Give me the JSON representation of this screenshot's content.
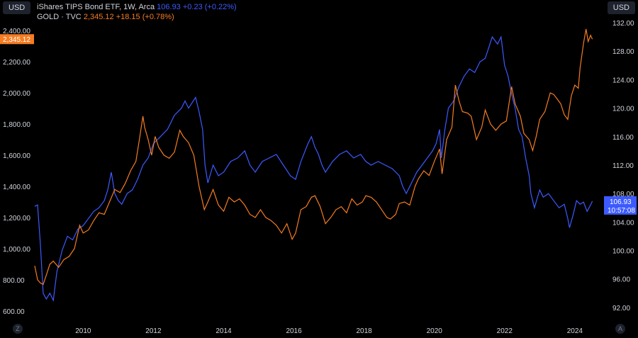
{
  "ui": {
    "left_currency": "USD",
    "right_currency": "USD",
    "zoom_button": "Z",
    "auto_button": "A"
  },
  "legend": {
    "tips": {
      "name": "iShares TIPS Bond ETF, 1W, Arca",
      "price": "106.93",
      "change": "+0.23 (+0.22%)"
    },
    "gold": {
      "name": "GOLD · TVC",
      "price": "2,345.12",
      "change": "+18.15 (+0.78%)"
    }
  },
  "colors": {
    "tips": "#3d5afe",
    "gold": "#f57c22",
    "axis_text": "#d1d4dc"
  },
  "chart_data": {
    "type": "line",
    "x_ticks": [
      "2010",
      "2012",
      "2014",
      "2016",
      "2018",
      "2020",
      "2022",
      "2024"
    ],
    "xlim": [
      2008.6,
      2024.75
    ],
    "left_axis": {
      "ticks": [
        "600.00",
        "800.00",
        "1,000.00",
        "1,200.00",
        "1,400.00",
        "1,600.00",
        "1,800.00",
        "2,000.00",
        "2,200.00",
        "2,400.00"
      ],
      "ylim": [
        540,
        2460
      ],
      "last_value_label": "2,345.12"
    },
    "right_axis": {
      "ticks": [
        "92.00",
        "96.00",
        "100.00",
        "104.00",
        "108.00",
        "112.00",
        "116.00",
        "120.00",
        "124.00",
        "128.00",
        "132.00"
      ],
      "ylim": [
        90.2,
        132.2
      ],
      "last_value_label": "106.93",
      "countdown_label": "10:57:08"
    },
    "series": [
      {
        "name": "iShares TIPS Bond ETF, 1W, Arca",
        "axis": "right",
        "points": [
          [
            2008.62,
            106.2
          ],
          [
            2008.7,
            106.4
          ],
          [
            2008.78,
            101
          ],
          [
            2008.86,
            94
          ],
          [
            2008.95,
            93.2
          ],
          [
            2009.05,
            94
          ],
          [
            2009.15,
            93
          ],
          [
            2009.25,
            97
          ],
          [
            2009.4,
            100
          ],
          [
            2009.55,
            102
          ],
          [
            2009.7,
            101.5
          ],
          [
            2009.85,
            103
          ],
          [
            2010.0,
            103.5
          ],
          [
            2010.15,
            104.5
          ],
          [
            2010.3,
            105.5
          ],
          [
            2010.45,
            106
          ],
          [
            2010.6,
            107
          ],
          [
            2010.7,
            108.5
          ],
          [
            2010.8,
            111
          ],
          [
            2010.9,
            108
          ],
          [
            2011.0,
            107
          ],
          [
            2011.1,
            106.5
          ],
          [
            2011.25,
            108
          ],
          [
            2011.4,
            108.5
          ],
          [
            2011.55,
            110
          ],
          [
            2011.7,
            112
          ],
          [
            2011.85,
            113
          ],
          [
            2012.0,
            115
          ],
          [
            2012.2,
            116
          ],
          [
            2012.4,
            117
          ],
          [
            2012.6,
            119
          ],
          [
            2012.8,
            120
          ],
          [
            2012.9,
            121
          ],
          [
            2013.0,
            120
          ],
          [
            2013.2,
            121.5
          ],
          [
            2013.3,
            119.5
          ],
          [
            2013.4,
            117
          ],
          [
            2013.47,
            112
          ],
          [
            2013.55,
            109.5
          ],
          [
            2013.7,
            112
          ],
          [
            2013.85,
            110.5
          ],
          [
            2014.0,
            111
          ],
          [
            2014.2,
            112.5
          ],
          [
            2014.4,
            113
          ],
          [
            2014.6,
            114
          ],
          [
            2014.75,
            112
          ],
          [
            2014.9,
            111
          ],
          [
            2015.1,
            112.5
          ],
          [
            2015.3,
            113
          ],
          [
            2015.5,
            113.5
          ],
          [
            2015.7,
            112
          ],
          [
            2015.9,
            110.5
          ],
          [
            2016.05,
            110
          ],
          [
            2016.2,
            112.5
          ],
          [
            2016.4,
            115
          ],
          [
            2016.5,
            116
          ],
          [
            2016.6,
            114.5
          ],
          [
            2016.7,
            113.5
          ],
          [
            2016.8,
            112
          ],
          [
            2016.9,
            111
          ],
          [
            2017.1,
            112.5
          ],
          [
            2017.3,
            113.5
          ],
          [
            2017.5,
            114
          ],
          [
            2017.7,
            113
          ],
          [
            2017.9,
            113.5
          ],
          [
            2018.05,
            112.5
          ],
          [
            2018.2,
            112
          ],
          [
            2018.4,
            112.5
          ],
          [
            2018.6,
            112
          ],
          [
            2018.8,
            111.5
          ],
          [
            2019.0,
            110.5
          ],
          [
            2019.1,
            109
          ],
          [
            2019.2,
            108
          ],
          [
            2019.35,
            109.5
          ],
          [
            2019.5,
            111
          ],
          [
            2019.65,
            112
          ],
          [
            2019.8,
            113
          ],
          [
            2019.95,
            114
          ],
          [
            2020.05,
            115
          ],
          [
            2020.15,
            117
          ],
          [
            2020.2,
            113
          ],
          [
            2020.3,
            117
          ],
          [
            2020.4,
            120
          ],
          [
            2020.55,
            121
          ],
          [
            2020.7,
            123
          ],
          [
            2020.85,
            124.5
          ],
          [
            2021.0,
            125.5
          ],
          [
            2021.15,
            125
          ],
          [
            2021.3,
            126.5
          ],
          [
            2021.45,
            127
          ],
          [
            2021.55,
            128.5
          ],
          [
            2021.65,
            130
          ],
          [
            2021.8,
            129
          ],
          [
            2021.9,
            130
          ],
          [
            2022.0,
            126
          ],
          [
            2022.1,
            124.5
          ],
          [
            2022.2,
            122
          ],
          [
            2022.3,
            120
          ],
          [
            2022.4,
            117
          ],
          [
            2022.5,
            116
          ],
          [
            2022.6,
            113
          ],
          [
            2022.7,
            110.5
          ],
          [
            2022.75,
            108
          ],
          [
            2022.85,
            106
          ],
          [
            2023.0,
            108.5
          ],
          [
            2023.1,
            107.5
          ],
          [
            2023.25,
            108
          ],
          [
            2023.4,
            107
          ],
          [
            2023.55,
            106
          ],
          [
            2023.7,
            106.5
          ],
          [
            2023.8,
            104.5
          ],
          [
            2023.85,
            103.2
          ],
          [
            2023.95,
            105
          ],
          [
            2024.05,
            107
          ],
          [
            2024.15,
            106.5
          ],
          [
            2024.25,
            106.8
          ],
          [
            2024.35,
            105.5
          ],
          [
            2024.45,
            106.4
          ],
          [
            2024.5,
            106.93
          ]
        ]
      },
      {
        "name": "GOLD · TVC",
        "axis": "left",
        "points": [
          [
            2008.62,
            890
          ],
          [
            2008.7,
            800
          ],
          [
            2008.78,
            780
          ],
          [
            2008.86,
            770
          ],
          [
            2008.95,
            830
          ],
          [
            2009.05,
            900
          ],
          [
            2009.15,
            920
          ],
          [
            2009.3,
            880
          ],
          [
            2009.45,
            930
          ],
          [
            2009.6,
            950
          ],
          [
            2009.75,
            1000
          ],
          [
            2009.9,
            1150
          ],
          [
            2010.0,
            1100
          ],
          [
            2010.15,
            1120
          ],
          [
            2010.3,
            1180
          ],
          [
            2010.45,
            1230
          ],
          [
            2010.6,
            1220
          ],
          [
            2010.75,
            1300
          ],
          [
            2010.9,
            1380
          ],
          [
            2011.05,
            1360
          ],
          [
            2011.2,
            1420
          ],
          [
            2011.35,
            1500
          ],
          [
            2011.5,
            1560
          ],
          [
            2011.6,
            1700
          ],
          [
            2011.7,
            1850
          ],
          [
            2011.75,
            1780
          ],
          [
            2011.85,
            1700
          ],
          [
            2011.95,
            1600
          ],
          [
            2012.05,
            1720
          ],
          [
            2012.15,
            1650
          ],
          [
            2012.3,
            1600
          ],
          [
            2012.45,
            1580
          ],
          [
            2012.6,
            1620
          ],
          [
            2012.75,
            1760
          ],
          [
            2012.85,
            1720
          ],
          [
            2013.0,
            1680
          ],
          [
            2013.15,
            1600
          ],
          [
            2013.3,
            1400
          ],
          [
            2013.45,
            1250
          ],
          [
            2013.55,
            1300
          ],
          [
            2013.7,
            1380
          ],
          [
            2013.85,
            1280
          ],
          [
            2014.0,
            1240
          ],
          [
            2014.15,
            1330
          ],
          [
            2014.3,
            1300
          ],
          [
            2014.45,
            1320
          ],
          [
            2014.6,
            1280
          ],
          [
            2014.75,
            1220
          ],
          [
            2014.9,
            1200
          ],
          [
            2015.05,
            1250
          ],
          [
            2015.2,
            1200
          ],
          [
            2015.35,
            1180
          ],
          [
            2015.5,
            1150
          ],
          [
            2015.65,
            1100
          ],
          [
            2015.8,
            1160
          ],
          [
            2015.95,
            1060
          ],
          [
            2016.05,
            1100
          ],
          [
            2016.2,
            1250
          ],
          [
            2016.35,
            1270
          ],
          [
            2016.5,
            1330
          ],
          [
            2016.6,
            1340
          ],
          [
            2016.75,
            1270
          ],
          [
            2016.9,
            1160
          ],
          [
            2017.05,
            1200
          ],
          [
            2017.2,
            1250
          ],
          [
            2017.35,
            1270
          ],
          [
            2017.5,
            1230
          ],
          [
            2017.65,
            1320
          ],
          [
            2017.8,
            1280
          ],
          [
            2017.95,
            1300
          ],
          [
            2018.05,
            1340
          ],
          [
            2018.2,
            1330
          ],
          [
            2018.35,
            1300
          ],
          [
            2018.5,
            1250
          ],
          [
            2018.65,
            1200
          ],
          [
            2018.75,
            1190
          ],
          [
            2018.9,
            1220
          ],
          [
            2019.0,
            1290
          ],
          [
            2019.15,
            1300
          ],
          [
            2019.3,
            1280
          ],
          [
            2019.45,
            1400
          ],
          [
            2019.55,
            1450
          ],
          [
            2019.7,
            1500
          ],
          [
            2019.85,
            1470
          ],
          [
            2020.0,
            1560
          ],
          [
            2020.15,
            1640
          ],
          [
            2020.22,
            1480
          ],
          [
            2020.35,
            1700
          ],
          [
            2020.5,
            1780
          ],
          [
            2020.6,
            2050
          ],
          [
            2020.7,
            1950
          ],
          [
            2020.8,
            1880
          ],
          [
            2020.95,
            1870
          ],
          [
            2021.05,
            1850
          ],
          [
            2021.2,
            1700
          ],
          [
            2021.35,
            1780
          ],
          [
            2021.45,
            1890
          ],
          [
            2021.6,
            1800
          ],
          [
            2021.75,
            1760
          ],
          [
            2021.9,
            1800
          ],
          [
            2022.05,
            1820
          ],
          [
            2022.2,
            2040
          ],
          [
            2022.3,
            1930
          ],
          [
            2022.45,
            1850
          ],
          [
            2022.55,
            1740
          ],
          [
            2022.7,
            1700
          ],
          [
            2022.8,
            1630
          ],
          [
            2022.9,
            1720
          ],
          [
            2023.0,
            1830
          ],
          [
            2023.15,
            1880
          ],
          [
            2023.3,
            2000
          ],
          [
            2023.4,
            1990
          ],
          [
            2023.5,
            1960
          ],
          [
            2023.6,
            1930
          ],
          [
            2023.7,
            1860
          ],
          [
            2023.8,
            1830
          ],
          [
            2023.9,
            1980
          ],
          [
            2024.0,
            2050
          ],
          [
            2024.1,
            2030
          ],
          [
            2024.15,
            2160
          ],
          [
            2024.25,
            2320
          ],
          [
            2024.32,
            2410
          ],
          [
            2024.38,
            2330
          ],
          [
            2024.45,
            2370
          ],
          [
            2024.5,
            2345
          ]
        ]
      }
    ],
    "grid": false,
    "legend_position": "top-left"
  }
}
